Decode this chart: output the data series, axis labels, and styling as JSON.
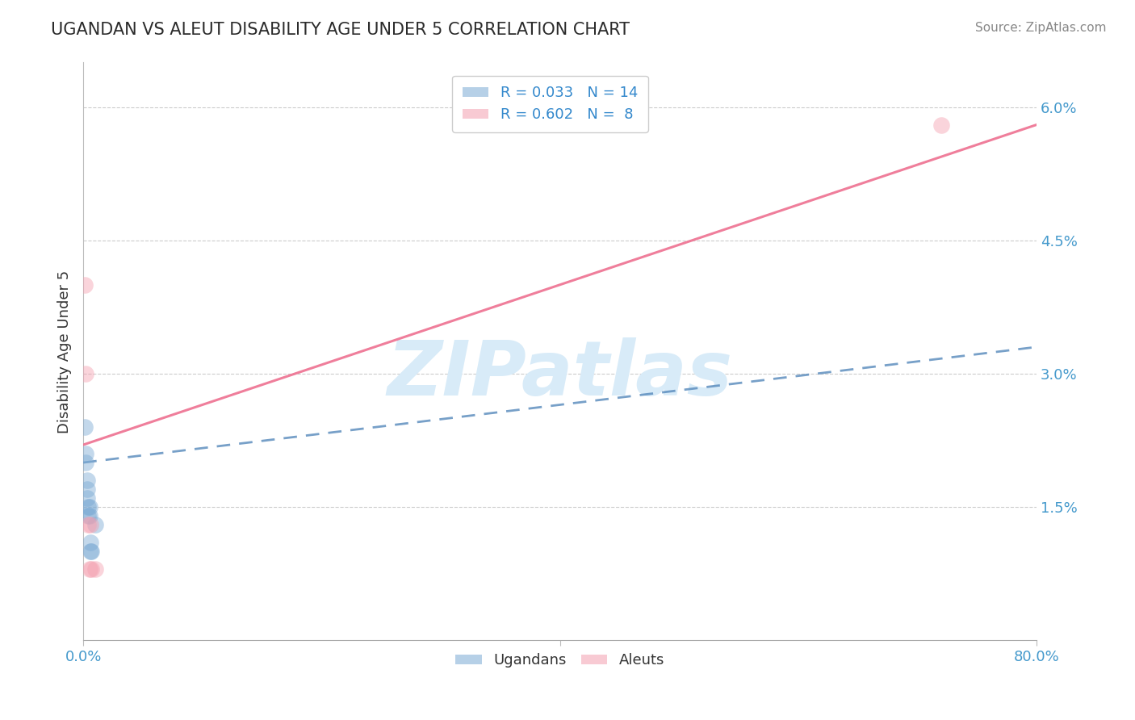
{
  "title": "UGANDAN VS ALEUT DISABILITY AGE UNDER 5 CORRELATION CHART",
  "source": "Source: ZipAtlas.com",
  "ylabel": "Disability Age Under 5",
  "xlim": [
    0.0,
    0.8
  ],
  "ylim": [
    0.0,
    0.065
  ],
  "yticks_right": [
    0.0,
    0.015,
    0.03,
    0.045,
    0.06
  ],
  "ytick_labels_right": [
    "",
    "1.5%",
    "3.0%",
    "4.5%",
    "6.0%"
  ],
  "ugandan_x": [
    0.001,
    0.002,
    0.002,
    0.003,
    0.003,
    0.003,
    0.004,
    0.004,
    0.005,
    0.005,
    0.006,
    0.006,
    0.007,
    0.01
  ],
  "ugandan_y": [
    0.024,
    0.02,
    0.021,
    0.016,
    0.017,
    0.018,
    0.014,
    0.015,
    0.014,
    0.015,
    0.01,
    0.011,
    0.01,
    0.013
  ],
  "aleut_x": [
    0.001,
    0.002,
    0.004,
    0.005,
    0.006,
    0.007,
    0.01,
    0.72
  ],
  "aleut_y": [
    0.04,
    0.03,
    0.013,
    0.008,
    0.013,
    0.008,
    0.008,
    0.058
  ],
  "ugandan_R": 0.033,
  "ugandan_N": 14,
  "aleut_R": 0.602,
  "aleut_N": 8,
  "ugandan_color": "#7BAAD4",
  "aleut_color": "#F4A0B0",
  "ugandan_line_color": "#5588BB",
  "aleut_line_color": "#EE7090",
  "bg_color": "#FFFFFF",
  "grid_color": "#CCCCCC",
  "title_color": "#2B2B2B",
  "axis_label_color": "#333333",
  "tick_color": "#4499CC",
  "legend_R_color": "#3388CC",
  "watermark": "ZIPatlas",
  "watermark_color": "#D8EBF8",
  "aleut_line_x0": 0.0,
  "aleut_line_y0": 0.022,
  "aleut_line_x1": 0.8,
  "aleut_line_y1": 0.058,
  "ugandan_line_x0": 0.0,
  "ugandan_line_y0": 0.02,
  "ugandan_line_x1": 0.8,
  "ugandan_line_y1": 0.033
}
